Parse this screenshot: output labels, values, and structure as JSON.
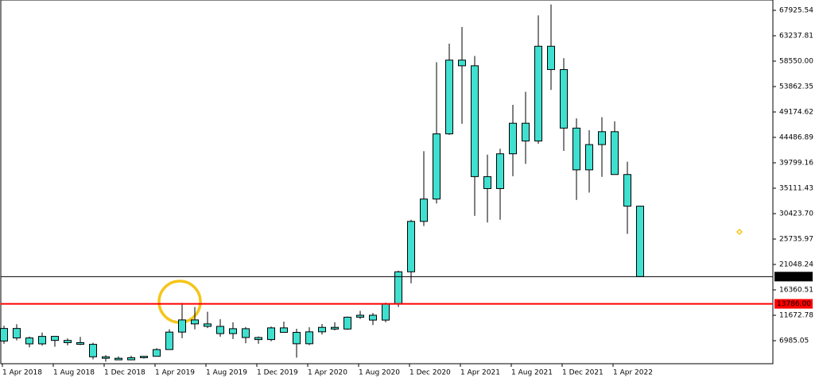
{
  "chart_data": {
    "type": "candlestick",
    "categories": [
      "1 Apr 2018",
      null,
      null,
      null,
      "1 Aug 2018",
      null,
      null,
      null,
      "1 Dec 2018",
      null,
      null,
      null,
      "1 Apr 2019",
      null,
      null,
      null,
      "1 Aug 2019",
      null,
      null,
      null,
      "1 Dec 2019",
      null,
      null,
      null,
      "1 Apr 2020",
      null,
      null,
      null,
      "1 Aug 2020",
      null,
      null,
      null,
      "1 Dec 2020",
      null,
      null,
      null,
      "1 Apr 2021",
      null,
      null,
      null,
      "1 Aug 2021",
      null,
      null,
      null,
      "1 Dec 2021",
      null,
      null,
      null,
      "1 Apr 2022",
      null,
      null
    ],
    "open": [
      6926,
      9240,
      7494,
      6404,
      7780,
      7037,
      6625,
      6318,
      4017,
      3742,
      3458,
      3854,
      4105,
      5350,
      8574,
      10817,
      10085,
      9630,
      8293,
      9199,
      7569,
      7193,
      9350,
      8523,
      6424,
      8624,
      9446,
      9137,
      11323,
      11680,
      10784,
      13781,
      19700,
      28990,
      33114,
      45137,
      58740,
      57694,
      37253,
      35045,
      41460,
      47100,
      43820,
      61300,
      57000,
      46200,
      38500,
      43160,
      45540,
      37640,
      31800
    ],
    "high": [
      9745,
      10020,
      7760,
      8490,
      7780,
      7410,
      7680,
      6600,
      4310,
      4080,
      4200,
      4120,
      5600,
      9090,
      13970,
      13200,
      12320,
      10950,
      10370,
      9510,
      7750,
      9580,
      10500,
      9190,
      9470,
      10070,
      10400,
      11440,
      12480,
      12090,
      14000,
      19900,
      29300,
      41950,
      58350,
      61780,
      64850,
      59500,
      41300,
      42400,
      50500,
      52900,
      67000,
      69000,
      59100,
      47990,
      45800,
      48200,
      47450,
      40000,
      31900
    ],
    "low": [
      6425,
      7040,
      5755,
      6070,
      5880,
      6120,
      6180,
      3550,
      3130,
      3400,
      3390,
      3700,
      4070,
      5330,
      7450,
      9070,
      9320,
      7720,
      7300,
      6520,
      6430,
      6870,
      8470,
      3850,
      6160,
      8120,
      8890,
      8990,
      10990,
      9880,
      10400,
      13210,
      17570,
      28130,
      32300,
      44950,
      47000,
      30000,
      28800,
      29300,
      37330,
      39600,
      43300,
      53250,
      42000,
      32950,
      34300,
      37200,
      37700,
      26700,
      18700
    ],
    "close": [
      9240,
      7494,
      6404,
      7780,
      7037,
      6625,
      6318,
      4017,
      3742,
      3458,
      3854,
      4105,
      5350,
      8574,
      10817,
      10085,
      9630,
      8293,
      9199,
      7569,
      7193,
      9350,
      8523,
      6424,
      8624,
      9446,
      9137,
      11323,
      11680,
      10784,
      13781,
      19700,
      28990,
      33114,
      45137,
      58740,
      57694,
      37253,
      35045,
      41460,
      47100,
      43820,
      61300,
      57000,
      46200,
      38500,
      43160,
      45540,
      37640,
      31800,
      18807.5
    ],
    "color": "#40e0d0",
    "ylim": [
      2741,
      69830
    ],
    "yticks": [
      67925.54,
      63237.81,
      {
        "value": 58550,
        "label": "58550.00"
      },
      53862.35,
      49174.62,
      44486.89,
      39799.16,
      35111.43,
      {
        "value": 30423.7,
        "label": "30423.70"
      },
      25735.97,
      21048.24,
      16360.51,
      11672.78,
      6985.05
    ],
    "levels": [
      {
        "value": 18807.5,
        "label": "18807.50",
        "color": "#000000"
      },
      {
        "value": 13786,
        "label": "13786.00",
        "color": "#ff0000"
      }
    ]
  }
}
